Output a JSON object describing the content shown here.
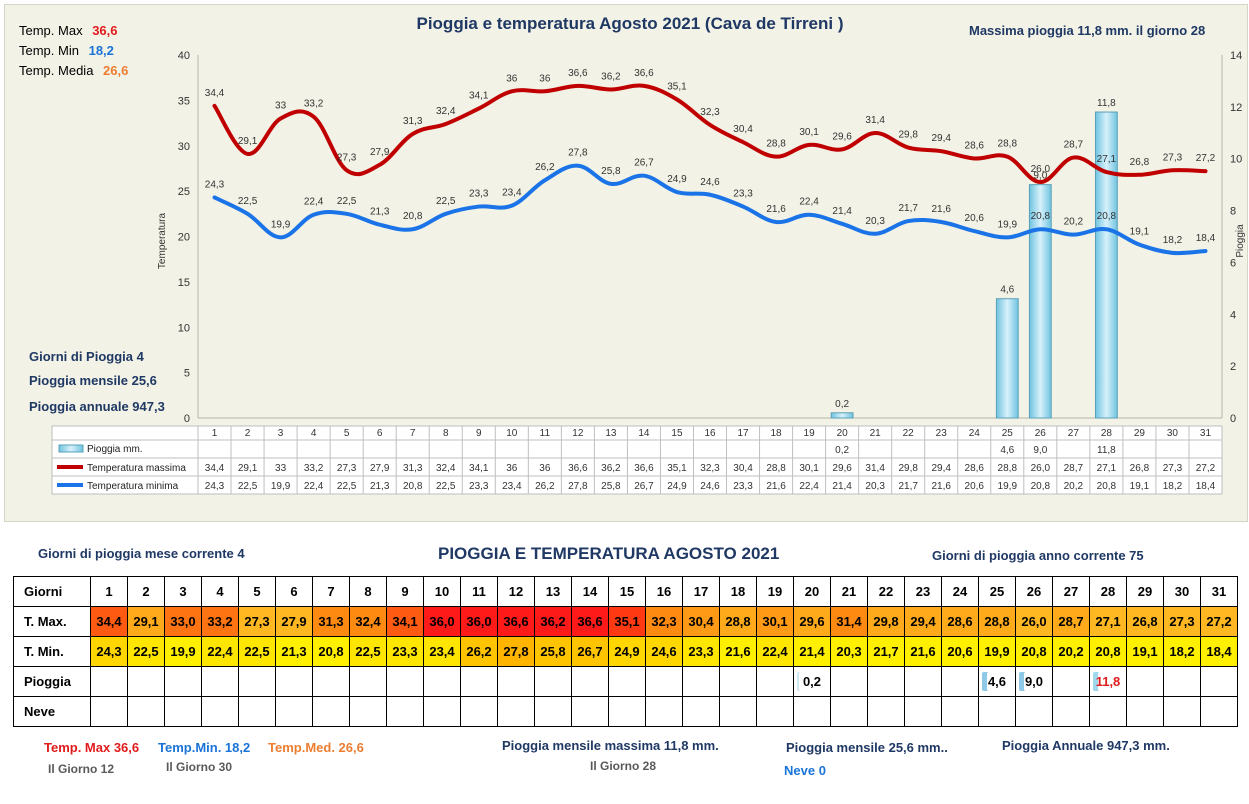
{
  "chart_data": {
    "type": "line",
    "title": "Pioggia e temperatura Agosto 2021 (Cava de Tirreni )",
    "ylabel": "Temperatura",
    "y2label": "Pioggia",
    "ylim": [
      0,
      40
    ],
    "y2lim": [
      0,
      14
    ],
    "yticks": [
      "0",
      "5",
      "10",
      "15",
      "20",
      "25",
      "30",
      "35",
      "40"
    ],
    "y2ticks": [
      "0",
      "2",
      "4",
      "6",
      "8",
      "10",
      "12",
      "14"
    ],
    "categories": [
      "1",
      "2",
      "3",
      "4",
      "5",
      "6",
      "7",
      "8",
      "9",
      "10",
      "11",
      "12",
      "13",
      "14",
      "15",
      "16",
      "17",
      "18",
      "19",
      "20",
      "21",
      "22",
      "23",
      "24",
      "25",
      "26",
      "27",
      "28",
      "29",
      "30",
      "31"
    ],
    "series": [
      {
        "name": "Temperatura massima",
        "color": "#c00000",
        "values": [
          34.4,
          29.1,
          33,
          33.2,
          27.3,
          27.9,
          31.3,
          32.4,
          34.1,
          36,
          36,
          36.6,
          36.2,
          36.6,
          35.1,
          32.3,
          30.4,
          28.8,
          30.1,
          29.6,
          31.4,
          29.8,
          29.4,
          28.6,
          28.8,
          26.0,
          28.7,
          27.1,
          26.8,
          27.3,
          27.2
        ]
      },
      {
        "name": "Temperatura minima",
        "color": "#1a74e8",
        "values": [
          24.3,
          22.5,
          19.9,
          22.4,
          22.5,
          21.3,
          20.8,
          22.5,
          23.3,
          23.4,
          26.2,
          27.8,
          25.8,
          26.7,
          24.9,
          24.6,
          23.3,
          21.6,
          22.4,
          21.4,
          20.3,
          21.7,
          21.6,
          20.6,
          19.9,
          20.8,
          20.2,
          20.8,
          19.1,
          18.2,
          18.4
        ]
      },
      {
        "name": "Pioggia mm.",
        "type": "bar",
        "axis": "y2",
        "values": [
          null,
          null,
          null,
          null,
          null,
          null,
          null,
          null,
          null,
          null,
          null,
          null,
          null,
          null,
          null,
          null,
          null,
          null,
          null,
          0.2,
          null,
          null,
          null,
          null,
          4.6,
          9.0,
          null,
          11.8,
          null,
          null,
          null
        ]
      }
    ],
    "max_labels": [
      "34,4",
      "29,1",
      "33",
      "33,2",
      "27,3",
      "27,9",
      "31,3",
      "32,4",
      "34,1",
      "36",
      "36",
      "36,6",
      "36,2",
      "36,6",
      "35,1",
      "32,3",
      "30,4",
      "28,8",
      "30,1",
      "29,6",
      "31,4",
      "29,8",
      "29,4",
      "28,6",
      "28,8",
      "26,0",
      "28,7",
      "27,1",
      "26,8",
      "27,3",
      "27,2"
    ],
    "min_labels": [
      "24,3",
      "22,5",
      "19,9",
      "22,4",
      "22,5",
      "21,3",
      "20,8",
      "22,5",
      "23,3",
      "23,4",
      "26,2",
      "27,8",
      "25,8",
      "26,7",
      "24,9",
      "24,6",
      "23,3",
      "21,6",
      "22,4",
      "21,4",
      "20,3",
      "21,7",
      "21,6",
      "20,6",
      "19,9",
      "20,8",
      "20,2",
      "20,8",
      "19,1",
      "18,2",
      "18,4"
    ],
    "rain_labels": [
      "",
      "",
      "",
      "",
      "",
      "",
      "",
      "",
      "",
      "",
      "",
      "",
      "",
      "",
      "",
      "",
      "",
      "",
      "",
      "0,2",
      "",
      "",
      "",
      "",
      "4,6",
      "9,0",
      "",
      "11,8",
      "",
      "",
      ""
    ],
    "grid": false,
    "legend": "bottom-table"
  },
  "stats": {
    "tmax_label": "Temp. Max",
    "tmax_value": "36,6",
    "tmin_label": "Temp. Min",
    "tmin_value": "18,2",
    "tmed_label": "Temp. Media",
    "tmed_value": "26,6",
    "max_rain": "Massima pioggia  11,8 mm. il giorno  28",
    "rain_days": "Giorni di Pioggia  4",
    "rain_month": "Pioggia mensile  25,6",
    "rain_year": "Pioggia annuale  947,3"
  },
  "table": {
    "heading": "PIOGGIA E TEMPERATURA AGOSTO 2021",
    "rain_days_month": "Giorni di pioggia mese corrente   4",
    "rain_days_year": "Giorni di pioggia anno corrente  75",
    "row_labels": {
      "days": "Giorni",
      "tmax": "T. Max.",
      "tmin": "T. Min.",
      "rain": "Pioggia",
      "snow": "Neve"
    },
    "tmax": [
      "34,4",
      "29,1",
      "33,0",
      "33,2",
      "27,3",
      "27,9",
      "31,3",
      "32,4",
      "34,1",
      "36,0",
      "36,0",
      "36,6",
      "36,2",
      "36,6",
      "35,1",
      "32,3",
      "30,4",
      "28,8",
      "30,1",
      "29,6",
      "31,4",
      "29,8",
      "29,4",
      "28,6",
      "28,8",
      "26,0",
      "28,7",
      "27,1",
      "26,8",
      "27,3",
      "27,2"
    ],
    "tmin": [
      "24,3",
      "22,5",
      "19,9",
      "22,4",
      "22,5",
      "21,3",
      "20,8",
      "22,5",
      "23,3",
      "23,4",
      "26,2",
      "27,8",
      "25,8",
      "26,7",
      "24,9",
      "24,6",
      "23,3",
      "21,6",
      "22,4",
      "21,4",
      "20,3",
      "21,7",
      "21,6",
      "20,6",
      "19,9",
      "20,8",
      "20,2",
      "20,8",
      "19,1",
      "18,2",
      "18,4"
    ],
    "rain": [
      "",
      "",
      "",
      "",
      "",
      "",
      "",
      "",
      "",
      "",
      "",
      "",
      "",
      "",
      "",
      "",
      "",
      "",
      "",
      "0,2",
      "",
      "",
      "",
      "",
      "4,6",
      "9,0",
      "",
      "11,8",
      "",
      "",
      ""
    ]
  },
  "footer": {
    "tmax": "Temp. Max 36,6",
    "tmin": "Temp.Min. 18,2",
    "tmed": "Temp.Med. 26,6",
    "tmax_day": "Il Giorno  12",
    "tmin_day": "Il Giorno 30",
    "max_rain": "Pioggia mensile massima  11,8   mm.",
    "max_rain_day": "Il Giorno 28",
    "rain_month": "Pioggia mensile  25,6   mm..",
    "rain_year": "Pioggia Annuale  947,3     mm.",
    "snow": "Neve 0"
  },
  "colors": {
    "max_line": "#c00000",
    "min_line": "#1a74e8",
    "rain_bar": "#9fd8ec",
    "title": "#1f3864",
    "red_text": "#e11b1b",
    "blue_text": "#1a74d8",
    "orange_text": "#ed7d31"
  }
}
